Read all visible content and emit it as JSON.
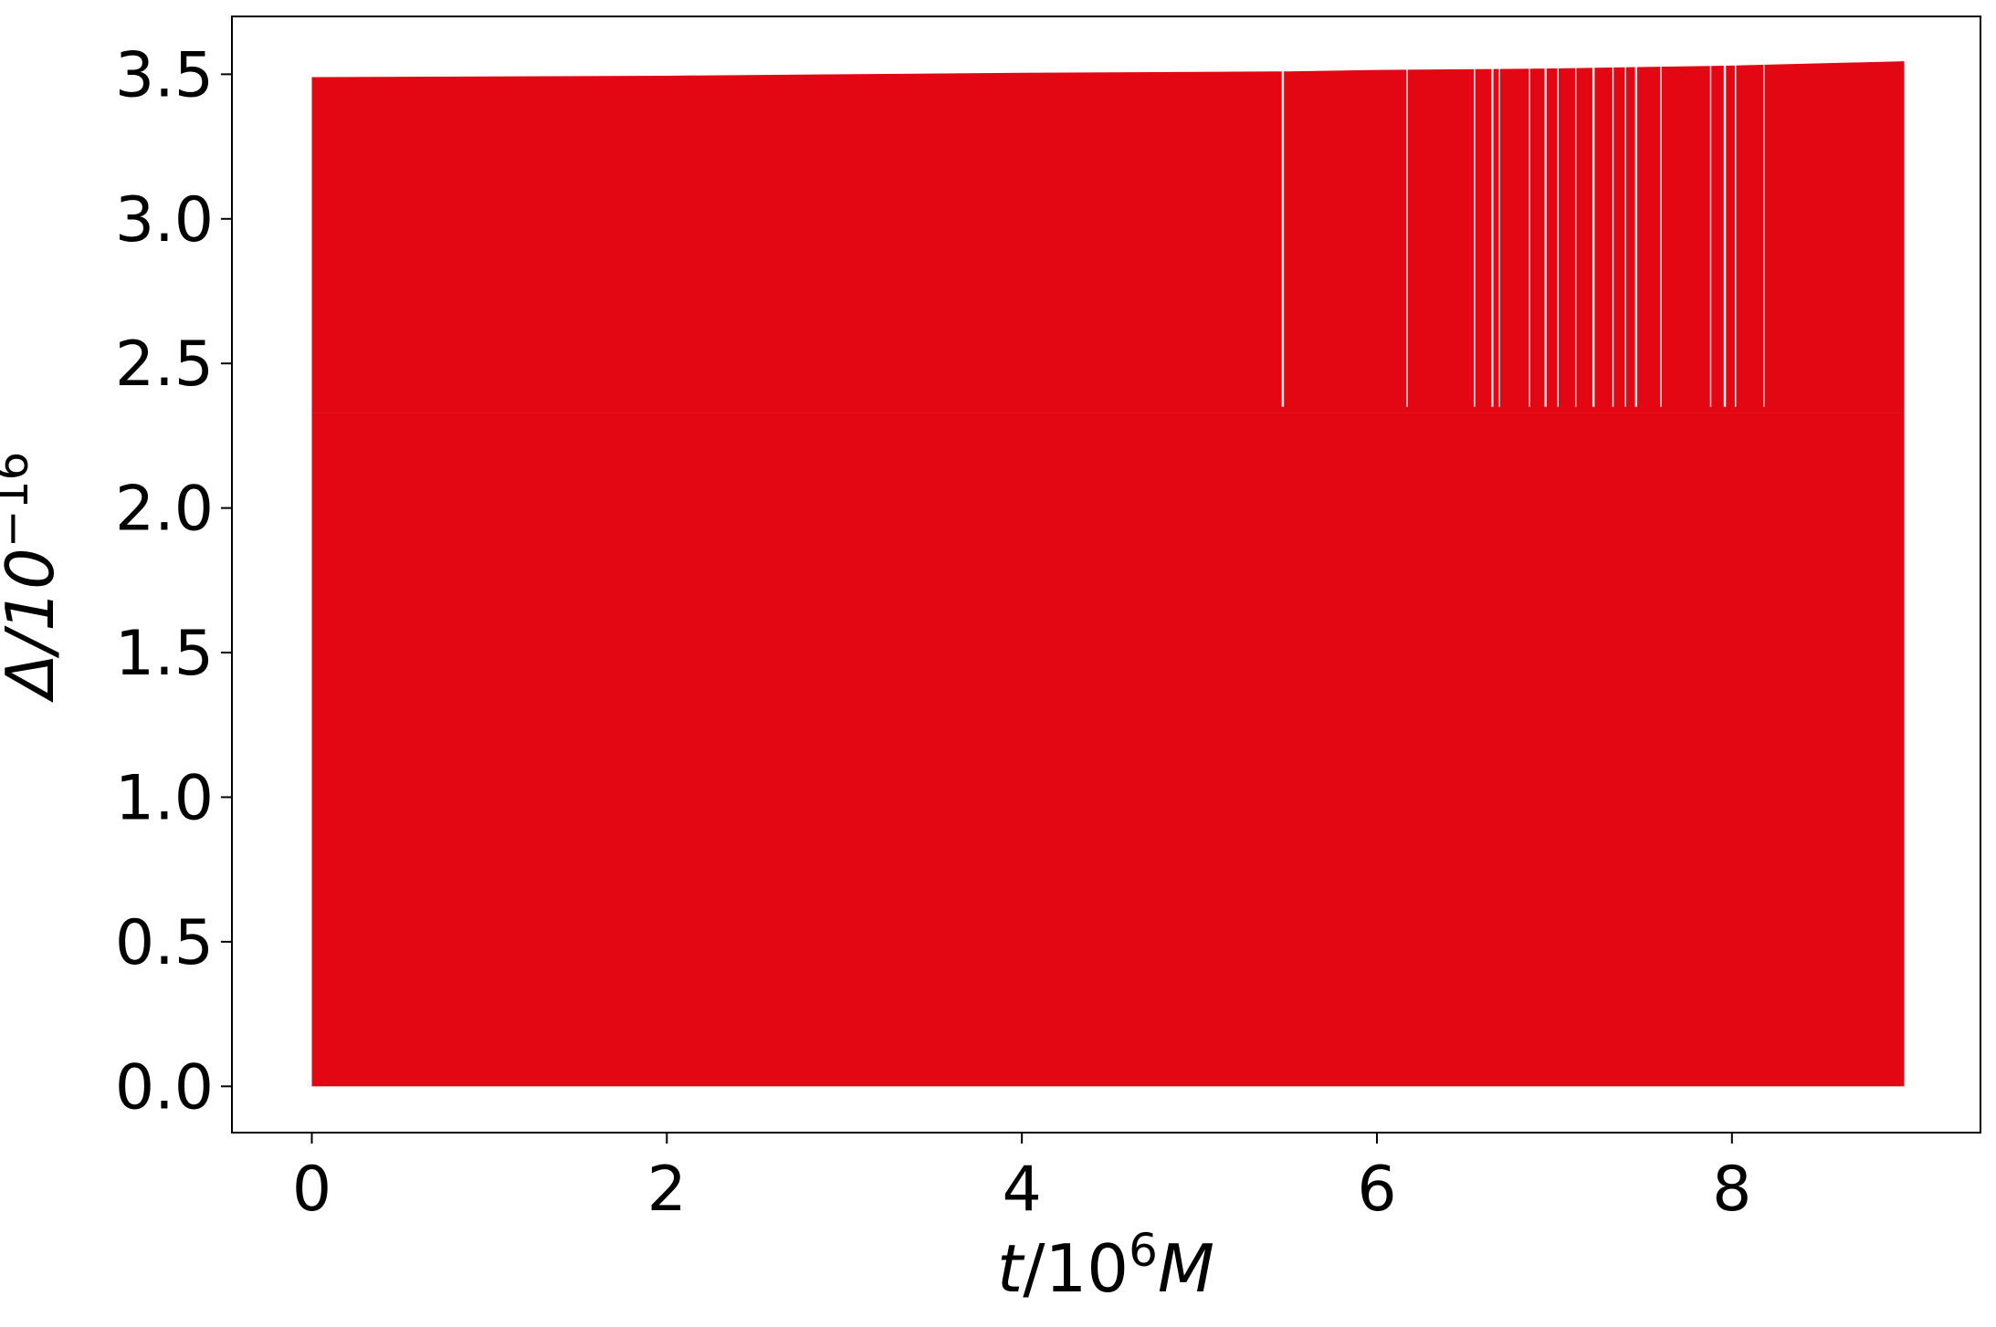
{
  "chart_data": {
    "type": "area",
    "title": "",
    "xlabel": {
      "var": "t",
      "sep": "/10",
      "exp": "6",
      "unit": "M"
    },
    "ylabel": {
      "base": "Δ/10",
      "exp": "−16"
    },
    "xlim": [
      -0.45,
      9.4
    ],
    "ylim": [
      -0.16,
      3.7
    ],
    "xticks": [
      0,
      2,
      4,
      6,
      8
    ],
    "xtick_labels": [
      "0",
      "2",
      "4",
      "6",
      "8"
    ],
    "yticks": [
      0.0,
      0.5,
      1.0,
      1.5,
      2.0,
      2.5,
      3.0,
      3.5
    ],
    "ytick_labels": [
      "0.0",
      "0.5",
      "1.0",
      "1.5",
      "2.0",
      "2.5",
      "3.0",
      "3.5"
    ],
    "grid": false,
    "series": [
      {
        "color": "#e30613",
        "description_values": {
          "x_range": [
            0,
            8.97
          ],
          "dense_lower_band_max": 2.33,
          "upper_envelope": {
            "x": [
              0,
              2,
              4,
              5.5,
              6,
              7,
              8,
              8.97
            ],
            "y": [
              3.49,
              3.495,
              3.505,
              3.51,
              3.515,
              3.52,
              3.53,
              3.545
            ]
          },
          "sparse_gap_x": [
            5.47,
            6.17,
            6.55,
            6.65,
            6.69,
            6.86,
            6.95,
            7.02,
            7.12,
            7.22,
            7.33,
            7.4,
            7.46,
            7.6,
            7.88,
            7.96,
            8.02,
            8.18
          ]
        }
      }
    ]
  }
}
